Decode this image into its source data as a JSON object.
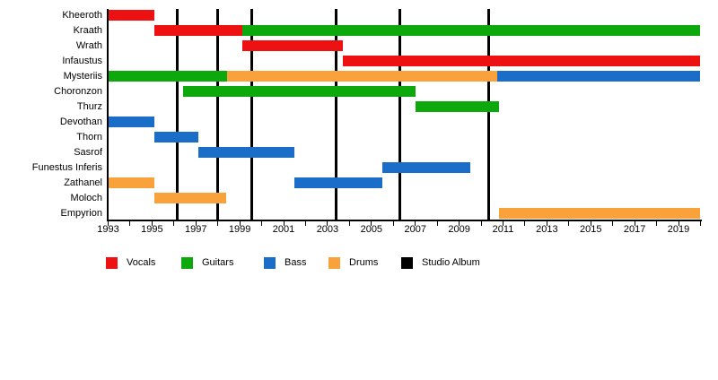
{
  "chart_data": {
    "type": "gantt",
    "description": "Band members timeline with roles and studio album release lines",
    "x_axis": {
      "min": 1993,
      "max": 2020,
      "tick_interval": 1,
      "tick_labels": [
        "1993",
        "1995",
        "1997",
        "1999",
        "2001",
        "2003",
        "2005",
        "2007",
        "2009",
        "2011",
        "2013",
        "2015",
        "2017",
        "2019"
      ]
    },
    "roles": {
      "vocals": "#ee1111",
      "guitars": "#0ca80c",
      "bass": "#1a6ec7",
      "drums": "#f9a23c"
    },
    "legend": [
      {
        "label": "Vocals",
        "color": "#ee1111"
      },
      {
        "label": "Guitars",
        "color": "#0ca80c"
      },
      {
        "label": "Bass",
        "color": "#1a6ec7"
      },
      {
        "label": "Drums",
        "color": "#f9a23c"
      },
      {
        "label": "Studio Album",
        "color": "#000000"
      }
    ],
    "members": [
      {
        "name": "Kheeroth",
        "segments": [
          {
            "role": "vocals",
            "start": 1993,
            "end": 1995.1
          }
        ]
      },
      {
        "name": "Kraath",
        "segments": [
          {
            "role": "vocals",
            "start": 1995.1,
            "end": 1999.1
          },
          {
            "role": "guitars",
            "start": 1999.1,
            "end": 2020
          }
        ]
      },
      {
        "name": "Wrath",
        "segments": [
          {
            "role": "vocals",
            "start": 1999.1,
            "end": 2003.7
          }
        ]
      },
      {
        "name": "Infaustus",
        "segments": [
          {
            "role": "vocals",
            "start": 2003.7,
            "end": 2020
          }
        ]
      },
      {
        "name": "Mysteriis",
        "segments": [
          {
            "role": "guitars",
            "start": 1993,
            "end": 1998.4
          },
          {
            "role": "drums",
            "start": 1998.4,
            "end": 2010.75
          },
          {
            "role": "bass",
            "start": 2010.75,
            "end": 2020
          }
        ]
      },
      {
        "name": "Choronzon",
        "segments": [
          {
            "role": "guitars",
            "start": 1996.4,
            "end": 2007
          }
        ]
      },
      {
        "name": "Thurz",
        "segments": [
          {
            "role": "guitars",
            "start": 2007,
            "end": 2010.8
          }
        ]
      },
      {
        "name": "Devothan",
        "segments": [
          {
            "role": "bass",
            "start": 1993,
            "end": 1995.1
          }
        ]
      },
      {
        "name": "Thorn",
        "segments": [
          {
            "role": "bass",
            "start": 1995.1,
            "end": 1997.1
          }
        ]
      },
      {
        "name": "Sasrof",
        "segments": [
          {
            "role": "bass",
            "start": 1997.1,
            "end": 2001.5
          }
        ]
      },
      {
        "name": "Funestus Inferis",
        "segments": [
          {
            "role": "bass",
            "start": 2005.5,
            "end": 2009.5
          }
        ]
      },
      {
        "name": "Zathanel",
        "segments": [
          {
            "role": "drums",
            "start": 1993,
            "end": 1995.1
          },
          {
            "role": "bass",
            "start": 2001.5,
            "end": 2005.5
          }
        ]
      },
      {
        "name": "Moloch",
        "segments": [
          {
            "role": "drums",
            "start": 1995.1,
            "end": 1998.4
          }
        ]
      },
      {
        "name": "Empyrion",
        "segments": [
          {
            "role": "drums",
            "start": 2010.8,
            "end": 2020
          }
        ]
      }
    ],
    "studio_albums": [
      1996.15,
      1998.0,
      1999.55,
      2003.4,
      2006.3,
      2010.35
    ]
  }
}
